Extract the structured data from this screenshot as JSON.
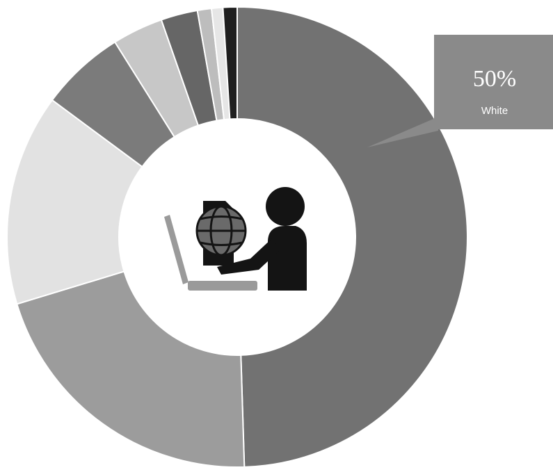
{
  "chart_data": {
    "type": "pie",
    "variant": "donut",
    "start_angle_deg": 0,
    "direction": "clockwise",
    "slices": [
      {
        "value": 50.0,
        "color": "#727272"
      },
      {
        "value": 21.0,
        "color": "#9c9c9c"
      },
      {
        "value": 15.0,
        "color": "#e2e2e2"
      },
      {
        "value": 6.0,
        "color": "#7b7b7b"
      },
      {
        "value": 3.6,
        "color": "#c7c7c7"
      },
      {
        "value": 2.6,
        "color": "#666666"
      },
      {
        "value": 1.0,
        "color": "#bdbdbd"
      },
      {
        "value": 0.8,
        "color": "#e6e6e6"
      },
      {
        "value": 1.0,
        "color": "#1f1f1f"
      }
    ],
    "callout": {
      "value": "50%",
      "label": "White",
      "slice_index": 0,
      "color": "#8a8a8a"
    },
    "center_icon": "person-at-computer-with-globe-icon"
  }
}
